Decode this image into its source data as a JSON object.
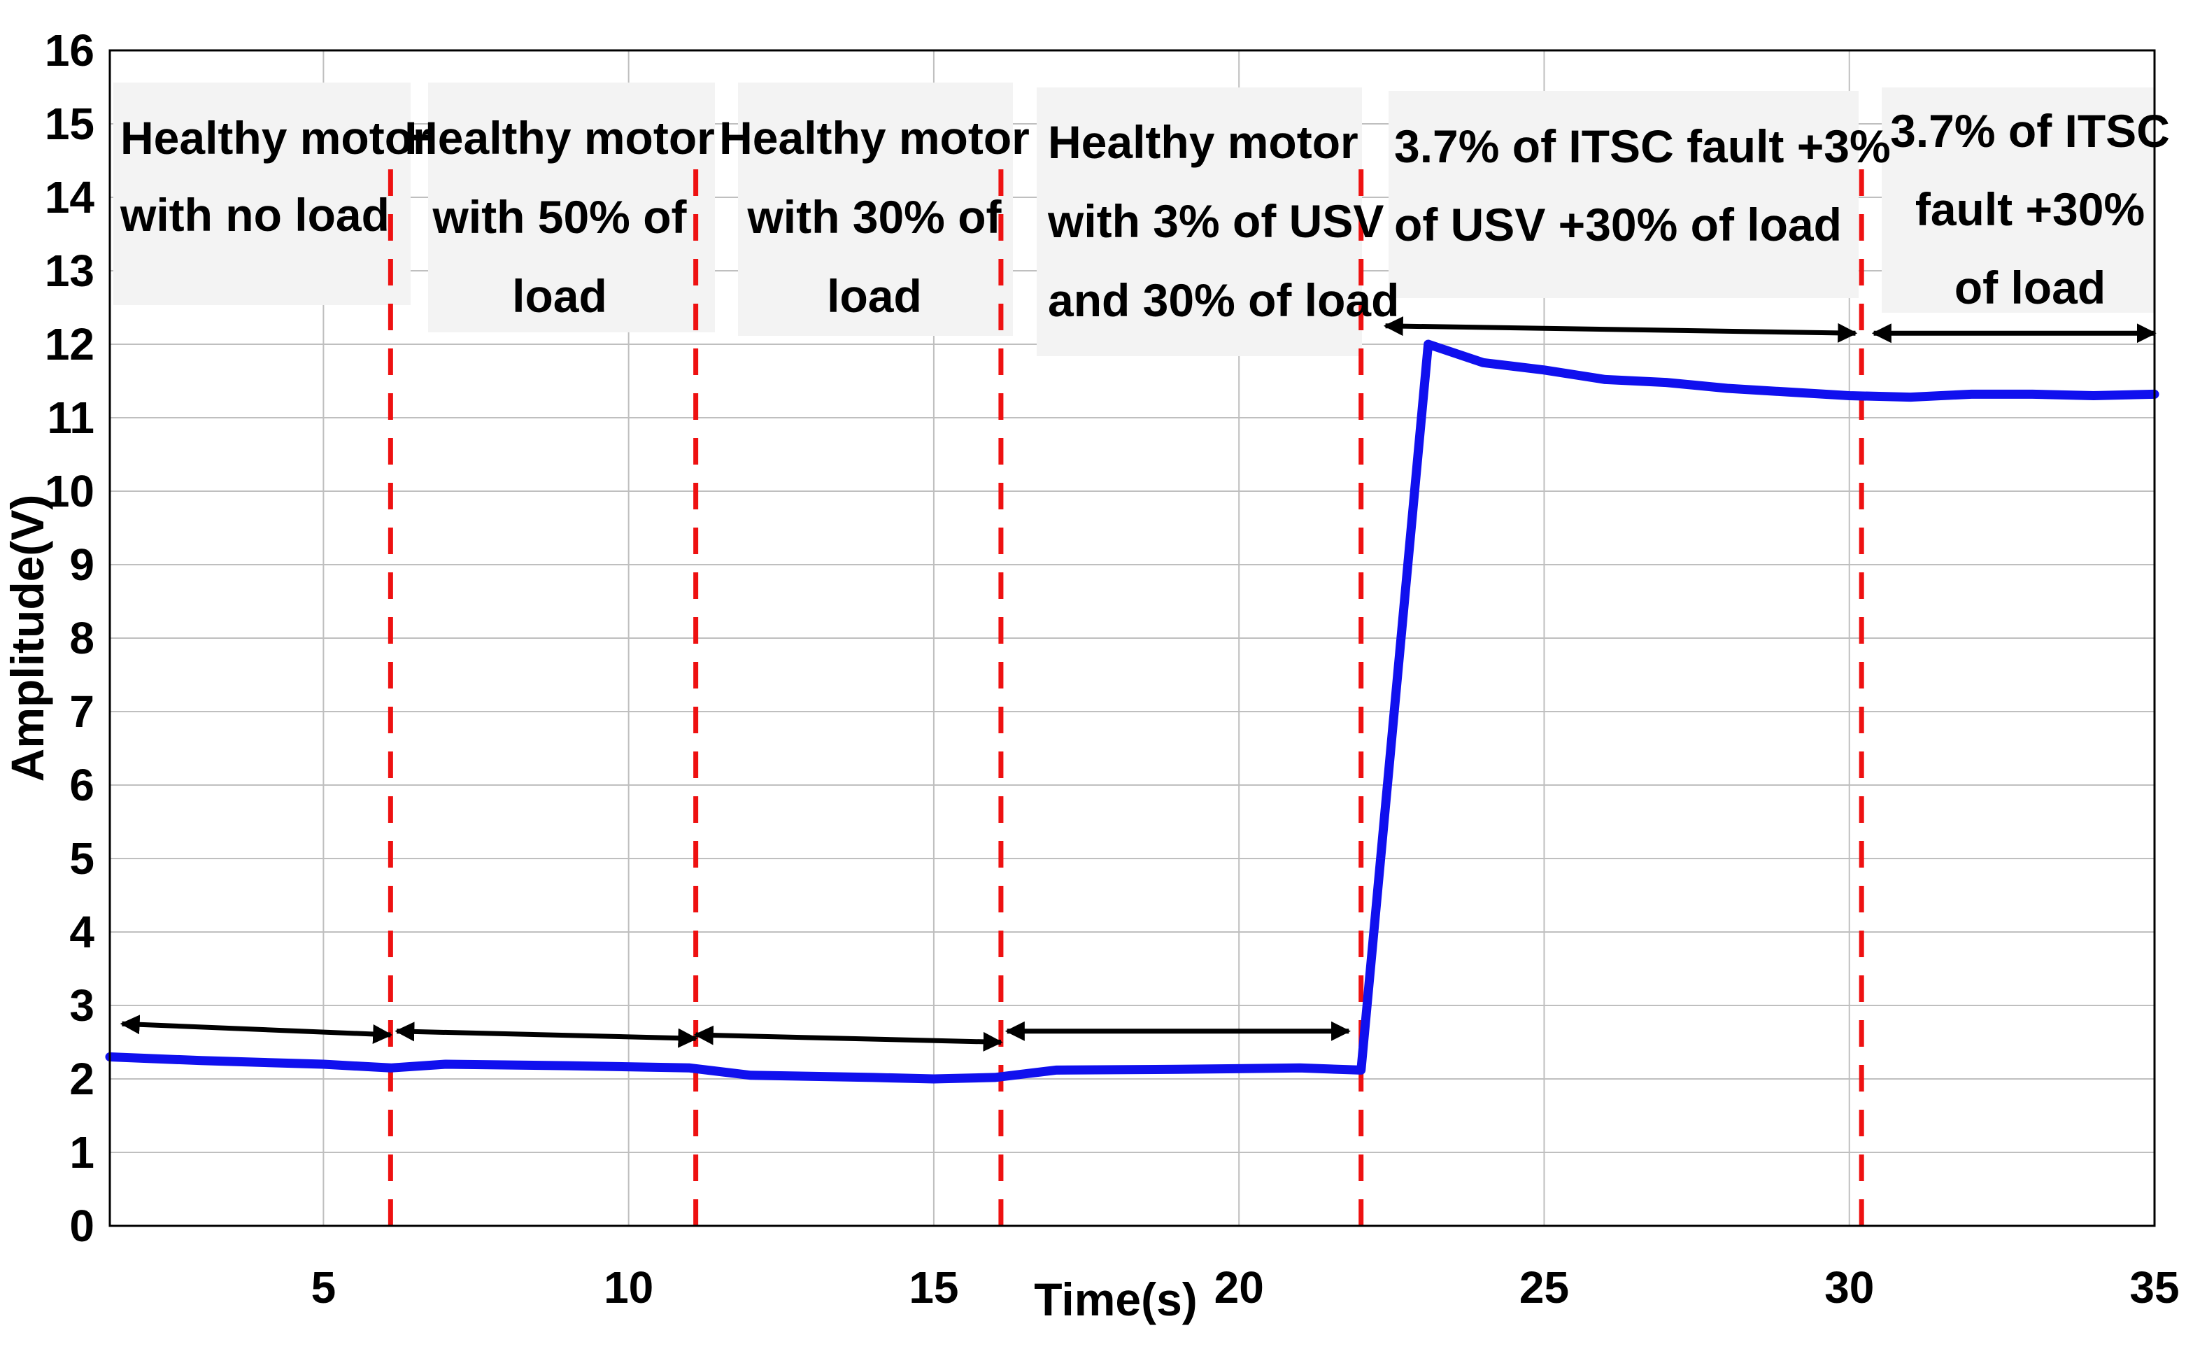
{
  "chart_data": {
    "type": "line",
    "title": "",
    "xlabel": "Time(s)",
    "ylabel": "Amplitude(V)",
    "xlim": [
      1.5,
      35
    ],
    "ylim": [
      0,
      16
    ],
    "xticks": [
      5,
      10,
      15,
      20,
      25,
      30,
      35
    ],
    "yticks": [
      0,
      1,
      2,
      3,
      4,
      5,
      6,
      7,
      8,
      9,
      10,
      11,
      12,
      13,
      14,
      15,
      16
    ],
    "grid": true,
    "series": [
      {
        "name": "Amplitude",
        "color": "#1010ee",
        "x": [
          1.5,
          3,
          5,
          6.1,
          7,
          9,
          11,
          12,
          14,
          15,
          16,
          17,
          19,
          21,
          22,
          23.1,
          24,
          25,
          26,
          27,
          28,
          29,
          30,
          31,
          32,
          33,
          34,
          35
        ],
        "y": [
          2.3,
          2.25,
          2.2,
          2.15,
          2.2,
          2.18,
          2.15,
          2.05,
          2.02,
          2.0,
          2.02,
          2.12,
          2.13,
          2.15,
          2.12,
          12.0,
          11.75,
          11.65,
          11.52,
          11.48,
          11.4,
          11.35,
          11.3,
          11.28,
          11.32,
          11.32,
          11.3,
          11.32
        ]
      }
    ],
    "dividers": {
      "color": "#ee1111",
      "x": [
        6.1,
        11.1,
        16.1,
        22.0,
        30.2
      ]
    },
    "segments": [
      {
        "lines": [
          "Healthy motor",
          "with no load"
        ],
        "arrow_x": [
          1.7,
          6.1
        ],
        "arrow_y": [
          2.75,
          2.6
        ]
      },
      {
        "lines": [
          "Healthy motor",
          "with 50% of",
          "load"
        ],
        "arrow_x": [
          6.2,
          11.1
        ],
        "arrow_y": [
          2.65,
          2.55
        ]
      },
      {
        "lines": [
          "Healthy motor",
          "with 30% of",
          "load"
        ],
        "arrow_x": [
          11.1,
          16.1
        ],
        "arrow_y": [
          2.6,
          2.5
        ]
      },
      {
        "lines": [
          "Healthy motor",
          "with 3% of USV",
          "and 30% of load"
        ],
        "arrow_x": [
          16.2,
          21.8
        ],
        "arrow_y": [
          2.65,
          2.65
        ]
      },
      {
        "lines": [
          "3.7% of ITSC fault  +3%",
          "of USV +30% of load"
        ],
        "arrow_x": [
          22.4,
          30.1
        ],
        "arrow_y": [
          12.25,
          12.15
        ]
      },
      {
        "lines": [
          "3.7% of ITSC",
          "fault  +30%",
          "of  load"
        ],
        "arrow_x": [
          30.4,
          35.0
        ],
        "arrow_y": [
          12.15,
          12.15
        ]
      }
    ]
  }
}
